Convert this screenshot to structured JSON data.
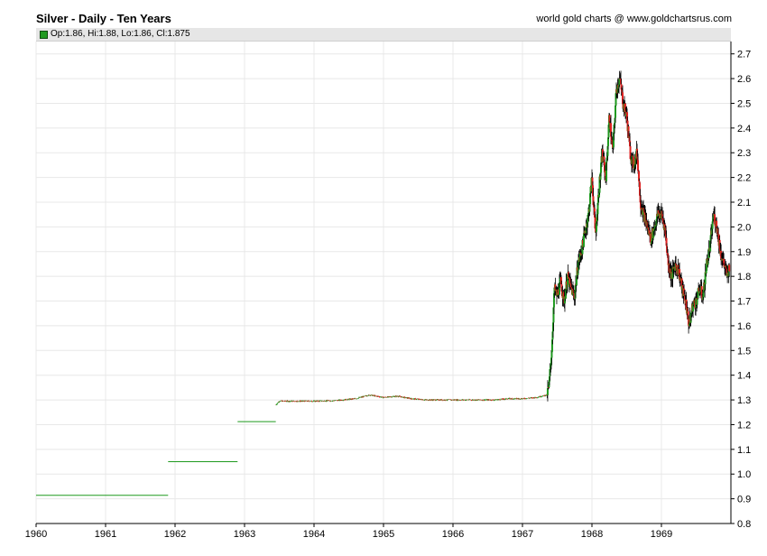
{
  "header": {
    "title": "Silver - Daily - Ten Years",
    "credit": "world gold charts @ www.goldchartsrus.com"
  },
  "legend": {
    "text": "Op:1.86, Hi:1.88, Lo:1.86, Cl:1.875"
  },
  "colors": {
    "up": "#1f9a1f",
    "down": "#e02020",
    "wick": "#000000",
    "grid": "#e8e8e8",
    "axis": "#000000"
  },
  "chart_data": {
    "type": "line",
    "xlim": [
      1960,
      1970
    ],
    "ylim": [
      0.8,
      2.75
    ],
    "x_ticks": [
      "1960",
      "1961",
      "1962",
      "1963",
      "1964",
      "1965",
      "1966",
      "1967",
      "1968",
      "1969"
    ],
    "y_ticks": [
      "0.8",
      "0.9",
      "1.0",
      "1.1",
      "1.2",
      "1.3",
      "1.4",
      "1.5",
      "1.6",
      "1.7",
      "1.8",
      "1.9",
      "2.0",
      "2.1",
      "2.2",
      "2.3",
      "2.4",
      "2.5",
      "2.6",
      "2.7"
    ],
    "flat_segments": [
      {
        "x_start": 1960.0,
        "x_end": 1961.9,
        "value": 0.914
      },
      {
        "x_start": 1961.9,
        "x_end": 1962.9,
        "value": 1.05
      },
      {
        "x_start": 1962.9,
        "x_end": 1963.45,
        "value": 1.212
      }
    ],
    "series": [
      {
        "x": [
          1963.45,
          1963.5,
          1963.7,
          1964.0,
          1964.3,
          1964.6,
          1964.8,
          1965.0,
          1965.2,
          1965.4,
          1965.6,
          1965.8,
          1966.0,
          1966.2,
          1966.4,
          1966.6,
          1966.8,
          1967.0,
          1967.2,
          1967.35,
          1967.38,
          1967.42,
          1967.46,
          1967.5,
          1967.55,
          1967.6,
          1967.65,
          1967.7,
          1967.75,
          1967.8,
          1967.85,
          1967.9,
          1967.95,
          1968.0,
          1968.05,
          1968.1,
          1968.15,
          1968.2,
          1968.25,
          1968.3,
          1968.35,
          1968.4,
          1968.45,
          1968.5,
          1968.55,
          1968.6,
          1968.65,
          1968.7,
          1968.75,
          1968.8,
          1968.85,
          1968.9,
          1968.95,
          1969.0,
          1969.05,
          1969.1,
          1969.15,
          1969.2,
          1969.25,
          1969.3,
          1969.35,
          1969.4,
          1969.45,
          1969.5,
          1969.55,
          1969.6,
          1969.65,
          1969.7,
          1969.75,
          1969.8,
          1969.85,
          1969.9,
          1969.95,
          1969.98
        ],
        "values": [
          1.28,
          1.295,
          1.295,
          1.295,
          1.297,
          1.305,
          1.32,
          1.31,
          1.315,
          1.305,
          1.3,
          1.3,
          1.3,
          1.3,
          1.3,
          1.3,
          1.305,
          1.305,
          1.31,
          1.32,
          1.35,
          1.5,
          1.75,
          1.72,
          1.78,
          1.7,
          1.8,
          1.75,
          1.72,
          1.85,
          1.9,
          1.98,
          2.05,
          2.2,
          1.97,
          2.15,
          2.3,
          2.2,
          2.45,
          2.3,
          2.55,
          2.6,
          2.5,
          2.45,
          2.3,
          2.25,
          2.3,
          2.1,
          2.05,
          2.0,
          1.95,
          2.0,
          2.05,
          2.05,
          2.0,
          1.85,
          1.8,
          1.85,
          1.82,
          1.75,
          1.7,
          1.6,
          1.68,
          1.7,
          1.75,
          1.72,
          1.85,
          1.92,
          2.05,
          2.0,
          1.9,
          1.85,
          1.8,
          1.85
        ]
      }
    ]
  }
}
